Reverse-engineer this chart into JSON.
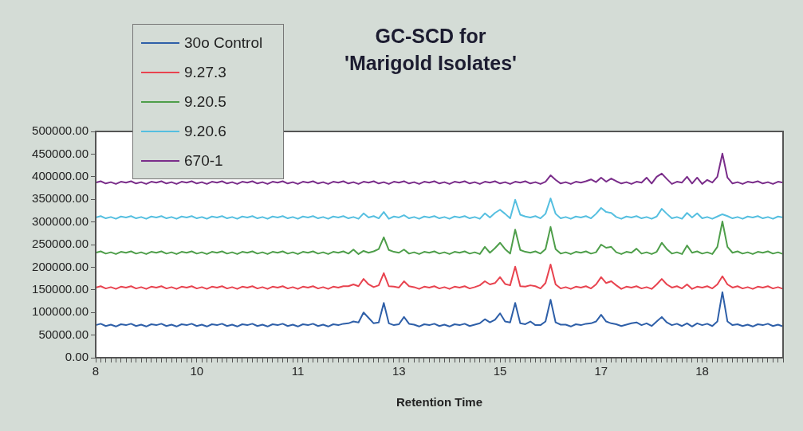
{
  "chart_data": {
    "type": "line",
    "title": "GC-SCD for\n'Marigold Isolates'",
    "xlabel": "Retention Time",
    "categories": [
      "8",
      null,
      null,
      null,
      null,
      null,
      null,
      null,
      null,
      null,
      null,
      null,
      null,
      null,
      null,
      null,
      null,
      null,
      null,
      null,
      "10",
      null,
      null,
      null,
      null,
      null,
      null,
      null,
      null,
      null,
      null,
      null,
      null,
      null,
      null,
      null,
      null,
      null,
      null,
      null,
      "11",
      null,
      null,
      null,
      null,
      null,
      null,
      null,
      null,
      null,
      null,
      null,
      null,
      null,
      null,
      null,
      null,
      null,
      null,
      null,
      "13",
      null,
      null,
      null,
      null,
      null,
      null,
      null,
      null,
      null,
      null,
      null,
      null,
      null,
      null,
      null,
      null,
      null,
      null,
      null,
      "15",
      null,
      null,
      null,
      null,
      null,
      null,
      null,
      null,
      null,
      null,
      null,
      null,
      null,
      null,
      null,
      null,
      null,
      null,
      null,
      "17",
      null,
      null,
      null,
      null,
      null,
      null,
      null,
      null,
      null,
      null,
      null,
      null,
      null,
      null,
      null,
      null,
      null,
      null,
      null,
      "18",
      null,
      null,
      null,
      null,
      null,
      null,
      null,
      null,
      null,
      null,
      null,
      null,
      null,
      null,
      null,
      null
    ],
    "series": [
      {
        "name": "30o Control",
        "color": "#2e5fa8",
        "values": [
          72000,
          75000,
          70000,
          73000,
          69000,
          74000,
          72000,
          75000,
          70000,
          73000,
          69000,
          74000,
          72000,
          75000,
          70000,
          73000,
          69000,
          74000,
          72000,
          75000,
          70000,
          73000,
          69000,
          74000,
          72000,
          75000,
          70000,
          73000,
          69000,
          74000,
          72000,
          75000,
          70000,
          73000,
          69000,
          74000,
          72000,
          75000,
          70000,
          73000,
          69000,
          74000,
          72000,
          75000,
          70000,
          73000,
          69000,
          74000,
          72000,
          75000,
          76000,
          80000,
          78000,
          100000,
          88000,
          76000,
          78000,
          121000,
          76000,
          72000,
          74000,
          90000,
          75000,
          73000,
          69000,
          74000,
          72000,
          75000,
          70000,
          73000,
          69000,
          74000,
          72000,
          75000,
          70000,
          73000,
          76000,
          85000,
          78000,
          84000,
          98000,
          80000,
          78000,
          121000,
          76000,
          74000,
          80000,
          72000,
          72000,
          80000,
          128000,
          78000,
          73000,
          73000,
          69000,
          74000,
          72000,
          75000,
          76000,
          80000,
          95000,
          80000,
          76000,
          74000,
          70000,
          73000,
          76000,
          78000,
          72000,
          76000,
          70000,
          80000,
          90000,
          78000,
          72000,
          75000,
          70000,
          76000,
          69000,
          76000,
          72000,
          75000,
          70000,
          80000,
          145000,
          80000,
          72000,
          74000,
          70000,
          73000,
          69000,
          74000,
          72000,
          75000,
          70000,
          73000,
          69000
        ]
      },
      {
        "name": "9.27.3",
        "color": "#e8434f",
        "values": [
          155000,
          158000,
          153000,
          156000,
          152000,
          157000,
          155000,
          158000,
          153000,
          156000,
          152000,
          157000,
          155000,
          158000,
          153000,
          156000,
          152000,
          157000,
          155000,
          158000,
          153000,
          156000,
          152000,
          157000,
          155000,
          158000,
          153000,
          156000,
          152000,
          157000,
          155000,
          158000,
          153000,
          156000,
          152000,
          157000,
          155000,
          158000,
          153000,
          156000,
          152000,
          157000,
          155000,
          158000,
          153000,
          156000,
          152000,
          157000,
          155000,
          158000,
          158000,
          162000,
          158000,
          174000,
          162000,
          156000,
          160000,
          187000,
          158000,
          157000,
          155000,
          169000,
          158000,
          156000,
          152000,
          157000,
          155000,
          158000,
          153000,
          156000,
          152000,
          157000,
          155000,
          158000,
          153000,
          156000,
          160000,
          169000,
          162000,
          165000,
          178000,
          163000,
          160000,
          201000,
          158000,
          157000,
          160000,
          158000,
          153000,
          165000,
          206000,
          162000,
          153000,
          156000,
          152000,
          157000,
          155000,
          158000,
          153000,
          162000,
          178000,
          165000,
          169000,
          160000,
          152000,
          157000,
          155000,
          158000,
          153000,
          156000,
          152000,
          162000,
          174000,
          162000,
          155000,
          158000,
          153000,
          162000,
          152000,
          157000,
          155000,
          158000,
          153000,
          162000,
          180000,
          162000,
          155000,
          158000,
          153000,
          156000,
          152000,
          157000,
          155000,
          158000,
          153000,
          156000,
          152000
        ]
      },
      {
        "name": "9.20.5",
        "color": "#4e9e4a",
        "values": [
          232000,
          235000,
          230000,
          233000,
          229000,
          234000,
          232000,
          235000,
          230000,
          233000,
          229000,
          234000,
          232000,
          235000,
          230000,
          233000,
          229000,
          234000,
          232000,
          235000,
          230000,
          233000,
          229000,
          234000,
          232000,
          235000,
          230000,
          233000,
          229000,
          234000,
          232000,
          235000,
          230000,
          233000,
          229000,
          234000,
          232000,
          235000,
          230000,
          233000,
          229000,
          234000,
          232000,
          235000,
          230000,
          233000,
          229000,
          234000,
          232000,
          235000,
          230000,
          239000,
          229000,
          236000,
          232000,
          235000,
          240000,
          266000,
          238000,
          234000,
          232000,
          239000,
          230000,
          233000,
          229000,
          234000,
          232000,
          235000,
          230000,
          233000,
          229000,
          234000,
          232000,
          235000,
          230000,
          233000,
          229000,
          245000,
          232000,
          242000,
          254000,
          240000,
          230000,
          283000,
          238000,
          234000,
          232000,
          235000,
          230000,
          240000,
          289000,
          240000,
          230000,
          233000,
          229000,
          234000,
          232000,
          235000,
          230000,
          233000,
          250000,
          243000,
          245000,
          233000,
          229000,
          234000,
          232000,
          241000,
          230000,
          233000,
          229000,
          234000,
          254000,
          240000,
          230000,
          233000,
          229000,
          248000,
          232000,
          235000,
          230000,
          233000,
          229000,
          245000,
          301000,
          245000,
          232000,
          235000,
          230000,
          233000,
          229000,
          234000,
          232000,
          235000,
          230000,
          233000,
          229000
        ]
      },
      {
        "name": "9.20.6",
        "color": "#55bfe0",
        "values": [
          310000,
          313000,
          308000,
          311000,
          307000,
          312000,
          310000,
          313000,
          308000,
          311000,
          307000,
          312000,
          310000,
          313000,
          308000,
          311000,
          307000,
          312000,
          310000,
          313000,
          308000,
          311000,
          307000,
          312000,
          310000,
          313000,
          308000,
          311000,
          307000,
          312000,
          310000,
          313000,
          308000,
          311000,
          307000,
          312000,
          310000,
          313000,
          308000,
          311000,
          307000,
          312000,
          310000,
          313000,
          308000,
          311000,
          307000,
          312000,
          310000,
          313000,
          308000,
          311000,
          307000,
          319000,
          310000,
          313000,
          308000,
          322000,
          307000,
          312000,
          310000,
          315000,
          308000,
          311000,
          307000,
          312000,
          310000,
          313000,
          308000,
          311000,
          307000,
          312000,
          310000,
          313000,
          308000,
          311000,
          307000,
          319000,
          310000,
          320000,
          327000,
          318000,
          308000,
          349000,
          316000,
          312000,
          310000,
          313000,
          308000,
          318000,
          352000,
          318000,
          308000,
          311000,
          307000,
          312000,
          310000,
          313000,
          308000,
          318000,
          331000,
          322000,
          320000,
          311000,
          307000,
          312000,
          310000,
          313000,
          308000,
          311000,
          307000,
          312000,
          329000,
          318000,
          308000,
          311000,
          307000,
          320000,
          310000,
          319000,
          308000,
          311000,
          307000,
          312000,
          317000,
          313000,
          308000,
          311000,
          307000,
          312000,
          310000,
          313000,
          308000,
          311000,
          307000,
          312000,
          310000
        ]
      },
      {
        "name": "670-1",
        "color": "#7a2d8a",
        "values": [
          387000,
          390000,
          385000,
          388000,
          384000,
          389000,
          387000,
          390000,
          385000,
          388000,
          384000,
          389000,
          387000,
          390000,
          385000,
          388000,
          384000,
          389000,
          387000,
          390000,
          385000,
          388000,
          384000,
          389000,
          387000,
          390000,
          385000,
          388000,
          384000,
          389000,
          387000,
          390000,
          385000,
          388000,
          384000,
          389000,
          387000,
          390000,
          385000,
          388000,
          384000,
          389000,
          387000,
          390000,
          385000,
          388000,
          384000,
          389000,
          387000,
          390000,
          385000,
          388000,
          384000,
          389000,
          387000,
          390000,
          385000,
          388000,
          384000,
          389000,
          387000,
          390000,
          385000,
          388000,
          384000,
          389000,
          387000,
          390000,
          385000,
          388000,
          384000,
          389000,
          387000,
          390000,
          385000,
          388000,
          384000,
          389000,
          387000,
          390000,
          385000,
          388000,
          384000,
          389000,
          387000,
          390000,
          385000,
          388000,
          384000,
          389000,
          403000,
          393000,
          385000,
          388000,
          384000,
          389000,
          387000,
          390000,
          394000,
          388000,
          398000,
          389000,
          396000,
          390000,
          385000,
          388000,
          384000,
          389000,
          387000,
          398000,
          385000,
          400000,
          407000,
          395000,
          384000,
          389000,
          387000,
          400000,
          385000,
          398000,
          384000,
          393000,
          387000,
          400000,
          451000,
          398000,
          385000,
          388000,
          384000,
          389000,
          387000,
          390000,
          385000,
          388000,
          384000,
          389000,
          387000
        ]
      }
    ],
    "ylim": [
      0,
      500000
    ],
    "yticks": [
      {
        "value": 0,
        "label": "0.00"
      },
      {
        "value": 50000,
        "label": "50000.00"
      },
      {
        "value": 100000,
        "label": "100000.00"
      },
      {
        "value": 150000,
        "label": "150000.00"
      },
      {
        "value": 200000,
        "label": "200000.00"
      },
      {
        "value": 250000,
        "label": "250000.00"
      },
      {
        "value": 300000,
        "label": "300000.00"
      },
      {
        "value": 350000,
        "label": "350000.00"
      },
      {
        "value": 400000,
        "label": "400000.00"
      },
      {
        "value": 450000,
        "label": "450000.00"
      },
      {
        "value": 500000,
        "label": "500000.00"
      }
    ],
    "grid": false,
    "legend": "top left",
    "marker": "none",
    "line_style": "solid"
  }
}
